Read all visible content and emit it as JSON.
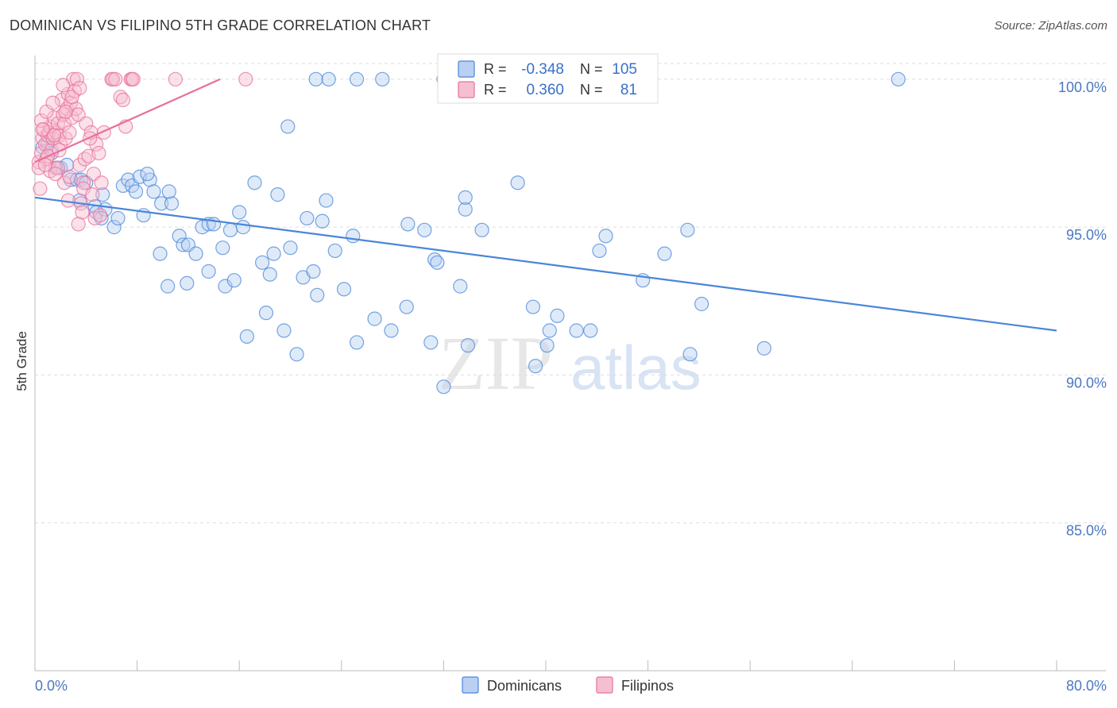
{
  "title": "DOMINICAN VS FILIPINO 5TH GRADE CORRELATION CHART",
  "source": "Source: ZipAtlas.com",
  "watermark": {
    "zip": "ZIP",
    "atlas": "atlas"
  },
  "colors": {
    "dominicans": "#4a86d8",
    "dominicans_fill": "#b9d0f2",
    "filipinos": "#e8709a",
    "filipinos_fill": "#f6bfd1",
    "axis_label": "#4a78c2",
    "grid": "#dddddd"
  },
  "legend": {
    "r_label": "R =",
    "n_label": "N =",
    "rows": [
      {
        "series": "Dominicans",
        "r": "-0.348",
        "n": "105"
      },
      {
        "series": "Filipinos",
        "r": "0.360",
        "n": "81"
      }
    ]
  },
  "chart_data": {
    "type": "scatter",
    "title": "DOMINICAN VS FILIPINO 5TH GRADE CORRELATION CHART",
    "xlabel": "",
    "ylabel": "5th Grade",
    "xlim": [
      0,
      80
    ],
    "ylim": [
      80.0,
      100.8
    ],
    "x_tick_labels": [
      "0.0%",
      "80.0%"
    ],
    "y_ticks": [
      85,
      90,
      95,
      100
    ],
    "y_tick_labels": [
      "85.0%",
      "90.0%",
      "95.0%",
      "100.0%"
    ],
    "grid": true,
    "legend_position": "top-center",
    "series": [
      {
        "name": "Dominicans",
        "color": "#4a86d8",
        "r": -0.348,
        "n": 105,
        "trend": {
          "x": [
            0,
            80
          ],
          "y": [
            96.0,
            91.5
          ]
        },
        "points": [
          [
            0.6,
            97.7
          ],
          [
            1.0,
            97.8
          ],
          [
            1.3,
            97.5
          ],
          [
            1.7,
            97.0
          ],
          [
            2.0,
            97.0
          ],
          [
            2.5,
            97.1
          ],
          [
            2.8,
            96.6
          ],
          [
            3.3,
            96.6
          ],
          [
            3.6,
            96.6
          ],
          [
            4.0,
            96.5
          ],
          [
            3.5,
            95.9
          ],
          [
            4.7,
            95.7
          ],
          [
            4.8,
            95.5
          ],
          [
            5.5,
            95.6
          ],
          [
            5.2,
            95.3
          ],
          [
            6.2,
            95.0
          ],
          [
            6.9,
            96.4
          ],
          [
            7.3,
            96.6
          ],
          [
            7.6,
            96.4
          ],
          [
            7.9,
            96.2
          ],
          [
            8.2,
            96.7
          ],
          [
            8.5,
            95.4
          ],
          [
            9.0,
            96.6
          ],
          [
            9.3,
            96.2
          ],
          [
            9.9,
            95.8
          ],
          [
            10.7,
            95.8
          ],
          [
            10.5,
            96.2
          ],
          [
            11.3,
            94.7
          ],
          [
            11.6,
            94.4
          ],
          [
            12.0,
            94.4
          ],
          [
            12.6,
            94.1
          ],
          [
            13.1,
            95.0
          ],
          [
            13.6,
            95.1
          ],
          [
            14.0,
            95.1
          ],
          [
            14.7,
            94.3
          ],
          [
            14.9,
            93.0
          ],
          [
            15.3,
            94.9
          ],
          [
            15.6,
            93.2
          ],
          [
            16.0,
            95.5
          ],
          [
            16.3,
            95.0
          ],
          [
            16.6,
            91.3
          ],
          [
            17.2,
            96.5
          ],
          [
            17.8,
            93.8
          ],
          [
            18.1,
            92.1
          ],
          [
            18.4,
            93.4
          ],
          [
            18.7,
            94.1
          ],
          [
            19.0,
            96.1
          ],
          [
            19.5,
            91.5
          ],
          [
            19.8,
            98.4
          ],
          [
            20.0,
            94.3
          ],
          [
            20.5,
            90.7
          ],
          [
            21.0,
            93.3
          ],
          [
            21.3,
            95.3
          ],
          [
            21.8,
            93.5
          ],
          [
            22.1,
            92.7
          ],
          [
            22.5,
            95.2
          ],
          [
            22.8,
            95.9
          ],
          [
            23.5,
            94.2
          ],
          [
            24.2,
            92.9
          ],
          [
            24.9,
            94.7
          ],
          [
            25.2,
            91.1
          ],
          [
            26.6,
            91.9
          ],
          [
            27.9,
            91.5
          ],
          [
            29.2,
            95.1
          ],
          [
            29.1,
            92.3
          ],
          [
            30.5,
            94.9
          ],
          [
            31.3,
            93.9
          ],
          [
            31.5,
            93.8
          ],
          [
            31.0,
            91.1
          ],
          [
            32.0,
            89.6
          ],
          [
            33.3,
            93.0
          ],
          [
            33.7,
            95.6
          ],
          [
            33.7,
            96.0
          ],
          [
            33.9,
            91.0
          ],
          [
            35.0,
            94.9
          ],
          [
            37.8,
            96.5
          ],
          [
            39.0,
            92.3
          ],
          [
            39.2,
            90.3
          ],
          [
            40.1,
            91.0
          ],
          [
            40.3,
            91.5
          ],
          [
            40.9,
            92.0
          ],
          [
            42.4,
            91.5
          ],
          [
            43.5,
            91.5
          ],
          [
            44.2,
            94.2
          ],
          [
            44.7,
            94.7
          ],
          [
            47.6,
            93.2
          ],
          [
            49.3,
            94.1
          ],
          [
            51.1,
            94.9
          ],
          [
            51.3,
            90.7
          ],
          [
            52.2,
            92.4
          ],
          [
            57.1,
            90.9
          ],
          [
            22.0,
            100.0
          ],
          [
            23.0,
            100.0
          ],
          [
            25.2,
            100.0
          ],
          [
            27.2,
            100.0
          ],
          [
            32.0,
            100.0
          ],
          [
            43.0,
            100.0
          ],
          [
            67.6,
            100.0
          ],
          [
            6.5,
            95.3
          ],
          [
            8.8,
            96.8
          ],
          [
            11.9,
            93.1
          ],
          [
            13.6,
            93.5
          ],
          [
            10.4,
            93.0
          ],
          [
            9.8,
            94.1
          ],
          [
            5.3,
            96.1
          ]
        ]
      },
      {
        "name": "Filipinos",
        "color": "#e8709a",
        "r": 0.36,
        "n": 81,
        "trend": {
          "x": [
            0,
            14.5
          ],
          "y": [
            97.2,
            100.0
          ]
        },
        "points": [
          [
            0.3,
            97.2
          ],
          [
            0.4,
            96.3
          ],
          [
            0.5,
            97.5
          ],
          [
            0.6,
            98.0
          ],
          [
            0.7,
            98.3
          ],
          [
            0.8,
            97.8
          ],
          [
            0.9,
            97.3
          ],
          [
            1.0,
            98.1
          ],
          [
            1.1,
            98.2
          ],
          [
            1.2,
            98.4
          ],
          [
            1.3,
            97.6
          ],
          [
            1.4,
            98.0
          ],
          [
            1.5,
            98.7
          ],
          [
            1.6,
            97.0
          ],
          [
            1.7,
            98.2
          ],
          [
            1.8,
            98.5
          ],
          [
            1.9,
            98.1
          ],
          [
            2.0,
            97.8
          ],
          [
            2.1,
            99.3
          ],
          [
            2.2,
            98.8
          ],
          [
            2.3,
            98.5
          ],
          [
            2.4,
            98.0
          ],
          [
            2.5,
            99.0
          ],
          [
            2.6,
            99.5
          ],
          [
            2.7,
            98.2
          ],
          [
            2.8,
            99.2
          ],
          [
            2.9,
            98.7
          ],
          [
            3.0,
            100.0
          ],
          [
            3.1,
            99.6
          ],
          [
            3.2,
            99.0
          ],
          [
            3.3,
            100.0
          ],
          [
            3.4,
            98.8
          ],
          [
            3.5,
            97.1
          ],
          [
            3.6,
            95.8
          ],
          [
            3.7,
            95.5
          ],
          [
            3.8,
            96.5
          ],
          [
            3.9,
            97.3
          ],
          [
            4.0,
            98.5
          ],
          [
            4.2,
            97.4
          ],
          [
            4.4,
            98.2
          ],
          [
            4.6,
            96.8
          ],
          [
            4.8,
            97.8
          ],
          [
            5.0,
            97.5
          ],
          [
            5.2,
            96.5
          ],
          [
            5.4,
            98.2
          ],
          [
            6.0,
            100.0
          ],
          [
            6.1,
            100.0
          ],
          [
            6.3,
            100.0
          ],
          [
            7.5,
            100.0
          ],
          [
            7.6,
            100.0
          ],
          [
            7.7,
            100.0
          ],
          [
            11.0,
            100.0
          ],
          [
            16.5,
            100.0
          ],
          [
            6.7,
            99.4
          ],
          [
            6.9,
            99.3
          ],
          [
            7.1,
            98.4
          ],
          [
            1.2,
            96.9
          ],
          [
            1.8,
            97.0
          ],
          [
            2.3,
            96.5
          ],
          [
            2.6,
            95.9
          ],
          [
            3.4,
            95.1
          ],
          [
            4.7,
            95.3
          ],
          [
            5.1,
            95.4
          ],
          [
            0.5,
            98.6
          ],
          [
            0.9,
            98.9
          ],
          [
            1.4,
            99.2
          ],
          [
            2.2,
            99.8
          ],
          [
            2.9,
            99.4
          ],
          [
            3.5,
            99.7
          ],
          [
            4.3,
            98.0
          ],
          [
            0.3,
            97.0
          ],
          [
            1.0,
            97.4
          ],
          [
            1.9,
            97.6
          ],
          [
            2.7,
            96.7
          ],
          [
            3.8,
            96.3
          ],
          [
            4.5,
            96.1
          ],
          [
            0.6,
            98.3
          ],
          [
            1.5,
            98.1
          ],
          [
            2.4,
            98.9
          ],
          [
            0.8,
            97.1
          ],
          [
            1.6,
            96.8
          ]
        ]
      }
    ]
  }
}
